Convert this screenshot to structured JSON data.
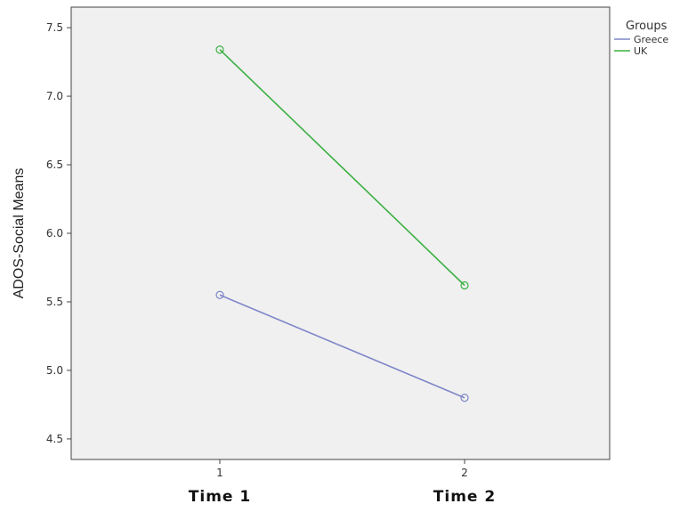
{
  "chart_data": {
    "type": "line",
    "ylabel": "ADOS-Social Means",
    "x": [
      1,
      2
    ],
    "x_tick_labels": [
      "1",
      "2"
    ],
    "x_category_labels": [
      "Time 1",
      "Time 2"
    ],
    "ylim": [
      4.35,
      7.65
    ],
    "y_ticks": [
      "4.5",
      "5.0",
      "5.5",
      "6.0",
      "6.5",
      "7.0",
      "7.5"
    ],
    "legend_title": "Groups",
    "legend_position": "top-right",
    "grid": false,
    "series": [
      {
        "name": "Greece",
        "color": "#7f86c8",
        "values": [
          5.55,
          4.8
        ]
      },
      {
        "name": "UK",
        "color": "#3cb043",
        "values": [
          7.34,
          5.62
        ]
      }
    ],
    "plot_background": "#f0f0f0"
  }
}
